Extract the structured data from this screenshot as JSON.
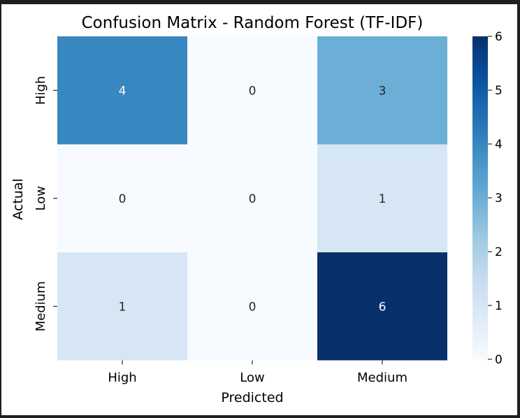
{
  "chart_data": {
    "type": "heatmap",
    "title": "Confusion Matrix - Random Forest (TF-IDF)",
    "xlabel": "Predicted",
    "ylabel": "Actual",
    "x_categories": [
      "High",
      "Low",
      "Medium"
    ],
    "y_categories": [
      "High",
      "Low",
      "Medium"
    ],
    "values": [
      [
        4,
        0,
        3
      ],
      [
        0,
        0,
        1
      ],
      [
        1,
        0,
        6
      ]
    ],
    "colormap": "Blues",
    "colorbar": {
      "range": [
        0,
        6
      ],
      "ticks": [
        "0",
        "1",
        "2",
        "3",
        "4",
        "5",
        "6"
      ]
    },
    "annotations": true,
    "grid": false
  }
}
